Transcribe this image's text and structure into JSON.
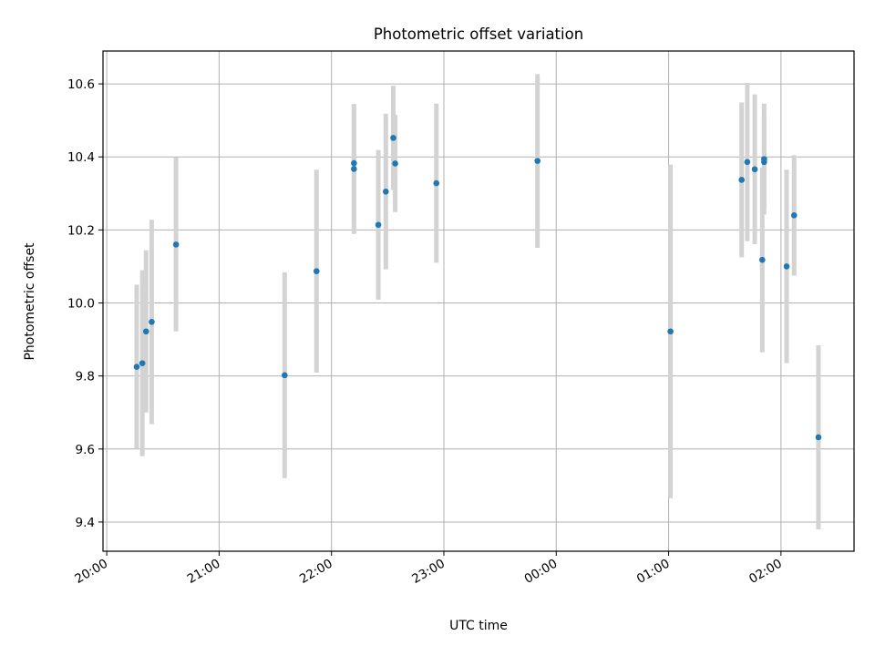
{
  "chart_data": {
    "type": "scatter",
    "title": "Photometric offset variation",
    "xlabel": "UTC time",
    "ylabel": "Photometric offset",
    "x_ticks": [
      "20:00",
      "21:00",
      "22:00",
      "23:00",
      "00:00",
      "01:00",
      "02:00"
    ],
    "y_ticks": [
      "9.4",
      "9.6",
      "9.8",
      "10.0",
      "10.2",
      "10.4",
      "10.6"
    ],
    "xlim": [
      "19:58",
      "02:39"
    ],
    "ylim": [
      9.32,
      10.69
    ],
    "grid": true,
    "colors": {
      "point": "#1f77b4",
      "errorbar": "#d3d3d3",
      "grid": "#b0b0b0"
    },
    "points": [
      {
        "x": "20:16",
        "y": 9.825,
        "err": 0.225
      },
      {
        "x": "20:19",
        "y": 9.835,
        "err": 0.255
      },
      {
        "x": "20:21",
        "y": 9.922,
        "err": 0.222
      },
      {
        "x": "20:24",
        "y": 9.948,
        "err": 0.28
      },
      {
        "x": "20:37",
        "y": 10.16,
        "err": 0.238
      },
      {
        "x": "21:35",
        "y": 9.802,
        "err": 0.282
      },
      {
        "x": "21:52",
        "y": 10.087,
        "err": 0.278
      },
      {
        "x": "22:12",
        "y": 10.383,
        "err": 0.158
      },
      {
        "x": "22:12",
        "y": 10.367,
        "err": 0.178
      },
      {
        "x": "22:25",
        "y": 10.214,
        "err": 0.205
      },
      {
        "x": "22:29",
        "y": 10.305,
        "err": 0.213
      },
      {
        "x": "22:33",
        "y": 10.452,
        "err": 0.143
      },
      {
        "x": "22:34",
        "y": 10.382,
        "err": 0.133
      },
      {
        "x": "22:56",
        "y": 10.328,
        "err": 0.218
      },
      {
        "x": "23:50",
        "y": 10.389,
        "err": 0.238
      },
      {
        "x": "01:01",
        "y": 9.922,
        "err": 0.457
      },
      {
        "x": "01:39",
        "y": 10.337,
        "err": 0.212
      },
      {
        "x": "01:42",
        "y": 10.386,
        "err": 0.217
      },
      {
        "x": "01:46",
        "y": 10.366,
        "err": 0.205
      },
      {
        "x": "01:50",
        "y": 10.118,
        "err": 0.253
      },
      {
        "x": "01:51",
        "y": 10.386,
        "err": 0.125
      },
      {
        "x": "01:51",
        "y": 10.394,
        "err": 0.152
      },
      {
        "x": "02:03",
        "y": 10.1,
        "err": 0.265
      },
      {
        "x": "02:07",
        "y": 10.24,
        "err": 0.165
      },
      {
        "x": "02:20",
        "y": 9.632,
        "err": 0.252
      }
    ]
  }
}
